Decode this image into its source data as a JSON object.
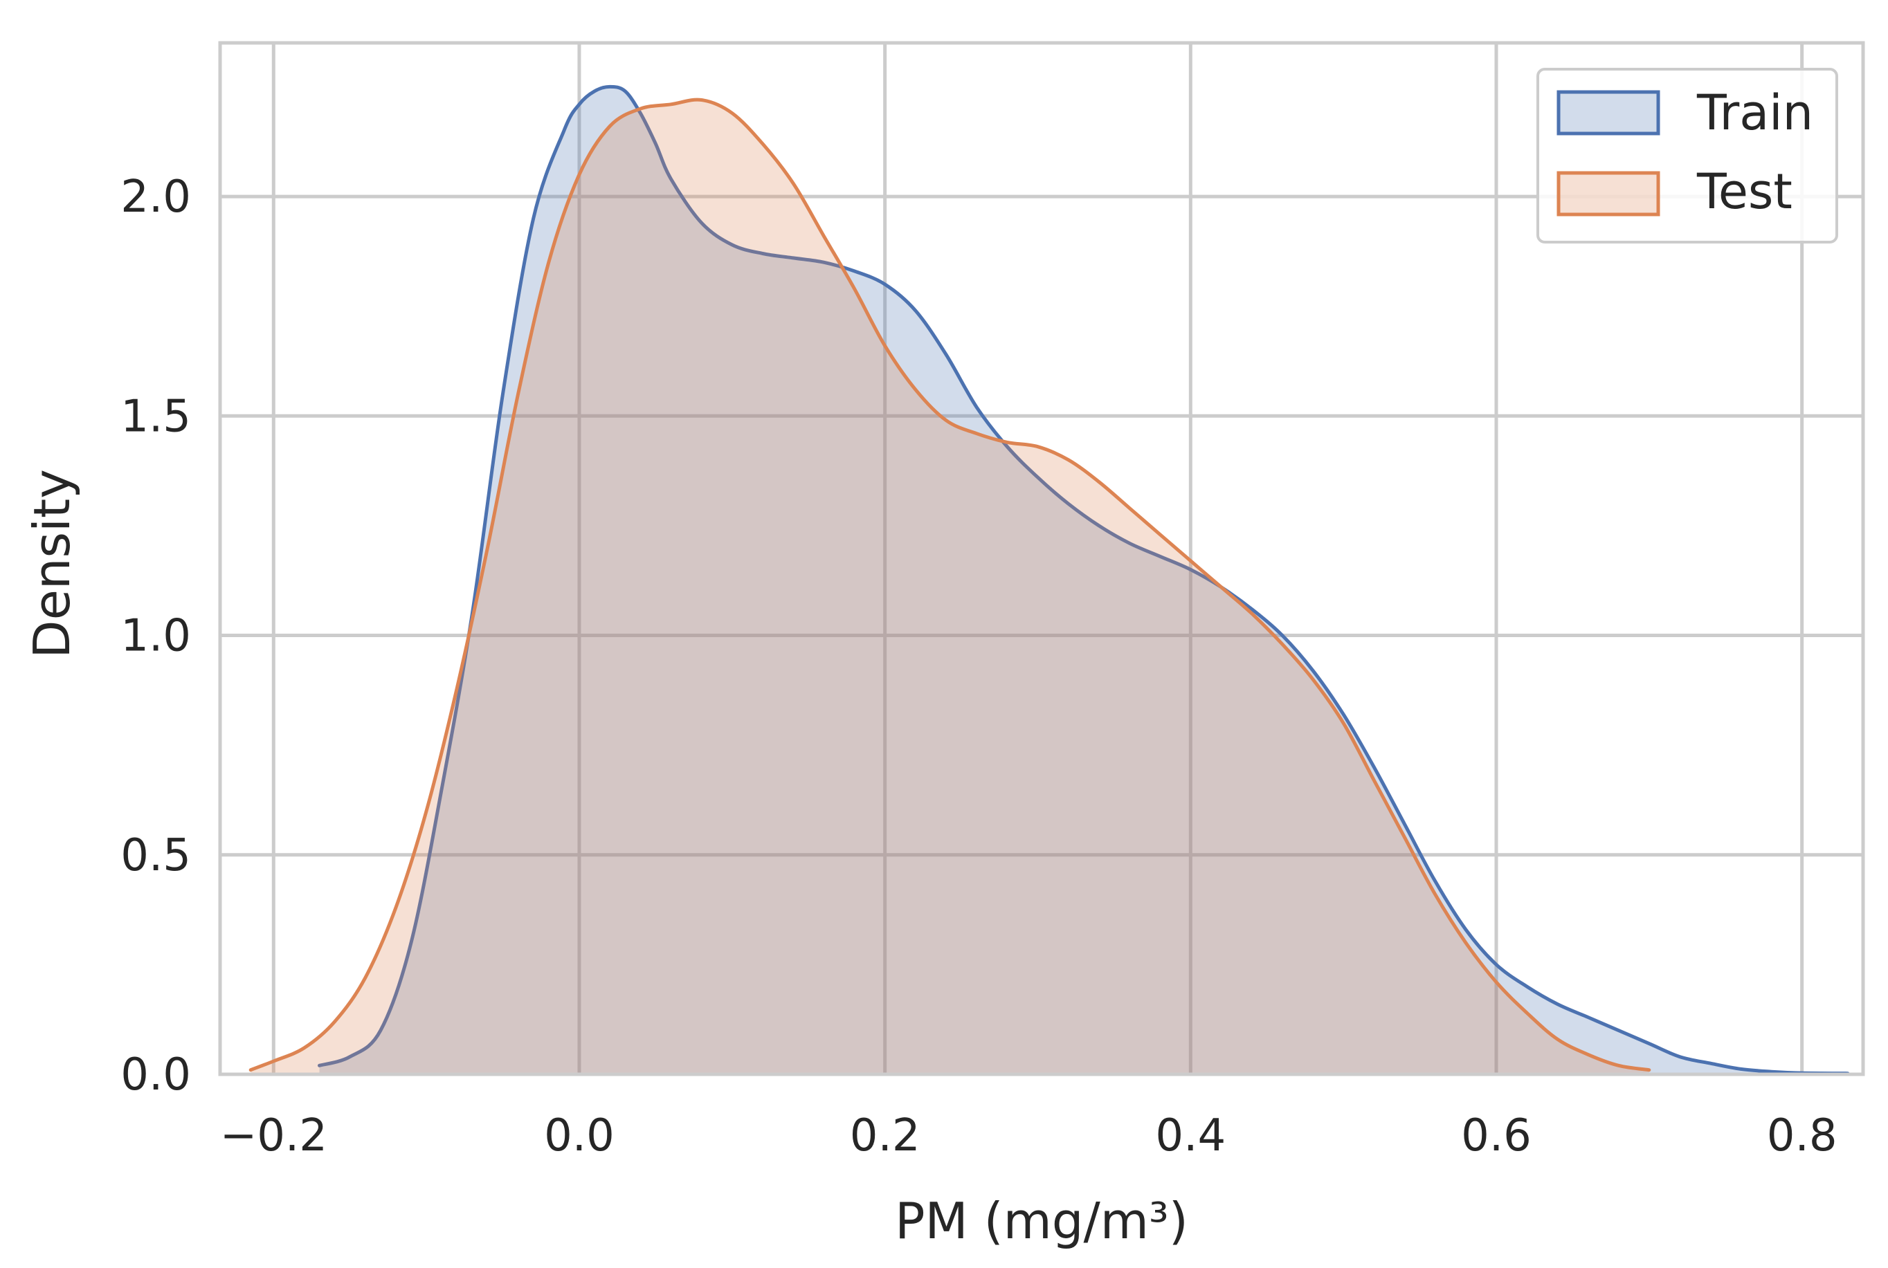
{
  "chart_data": {
    "type": "area",
    "xlabel": "PM (mg/m³)",
    "ylabel": "Density",
    "xlim": [
      -0.235,
      0.84
    ],
    "ylim": [
      0,
      2.35
    ],
    "xticks": [
      -0.2,
      0.0,
      0.2,
      0.4,
      0.6,
      0.8
    ],
    "xtick_labels": [
      "−0.2",
      "0.0",
      "0.2",
      "0.4",
      "0.6",
      "0.8"
    ],
    "yticks": [
      0.0,
      0.5,
      1.0,
      1.5,
      2.0
    ],
    "ytick_labels": [
      "0.0",
      "0.5",
      "1.0",
      "1.5",
      "2.0"
    ],
    "grid": true,
    "legend_position": "top-right",
    "series": [
      {
        "name": "Train",
        "color": "#4c72b0",
        "x": [
          -0.17,
          -0.15,
          -0.13,
          -0.11,
          -0.09,
          -0.07,
          -0.05,
          -0.03,
          -0.01,
          0.0,
          0.01,
          0.02,
          0.03,
          0.04,
          0.05,
          0.06,
          0.08,
          0.1,
          0.12,
          0.14,
          0.16,
          0.18,
          0.2,
          0.22,
          0.24,
          0.26,
          0.28,
          0.3,
          0.32,
          0.34,
          0.36,
          0.38,
          0.4,
          0.42,
          0.44,
          0.46,
          0.48,
          0.5,
          0.52,
          0.54,
          0.56,
          0.58,
          0.6,
          0.62,
          0.64,
          0.66,
          0.68,
          0.7,
          0.72,
          0.74,
          0.76,
          0.78,
          0.8,
          0.83
        ],
        "y": [
          0.02,
          0.04,
          0.1,
          0.3,
          0.65,
          1.05,
          1.55,
          1.95,
          2.15,
          2.21,
          2.24,
          2.25,
          2.24,
          2.19,
          2.12,
          2.04,
          1.94,
          1.89,
          1.87,
          1.86,
          1.85,
          1.83,
          1.8,
          1.74,
          1.64,
          1.52,
          1.43,
          1.36,
          1.3,
          1.25,
          1.21,
          1.18,
          1.15,
          1.11,
          1.06,
          1.0,
          0.92,
          0.82,
          0.7,
          0.57,
          0.44,
          0.33,
          0.25,
          0.2,
          0.16,
          0.13,
          0.1,
          0.07,
          0.04,
          0.025,
          0.012,
          0.006,
          0.003,
          0.002
        ]
      },
      {
        "name": "Test",
        "color": "#dd8452",
        "x": [
          -0.215,
          -0.2,
          -0.18,
          -0.16,
          -0.14,
          -0.12,
          -0.1,
          -0.08,
          -0.06,
          -0.04,
          -0.02,
          0.0,
          0.02,
          0.04,
          0.06,
          0.08,
          0.1,
          0.12,
          0.14,
          0.16,
          0.18,
          0.2,
          0.22,
          0.24,
          0.26,
          0.28,
          0.3,
          0.32,
          0.34,
          0.36,
          0.38,
          0.4,
          0.42,
          0.44,
          0.46,
          0.48,
          0.5,
          0.52,
          0.54,
          0.56,
          0.58,
          0.6,
          0.62,
          0.64,
          0.66,
          0.68,
          0.7
        ],
        "y": [
          0.01,
          0.03,
          0.06,
          0.12,
          0.22,
          0.38,
          0.6,
          0.88,
          1.2,
          1.55,
          1.85,
          2.05,
          2.16,
          2.2,
          2.21,
          2.22,
          2.19,
          2.12,
          2.03,
          1.91,
          1.79,
          1.66,
          1.56,
          1.49,
          1.46,
          1.44,
          1.43,
          1.4,
          1.35,
          1.29,
          1.23,
          1.17,
          1.11,
          1.05,
          0.98,
          0.9,
          0.8,
          0.67,
          0.54,
          0.41,
          0.3,
          0.21,
          0.14,
          0.08,
          0.045,
          0.02,
          0.01
        ]
      }
    ]
  }
}
